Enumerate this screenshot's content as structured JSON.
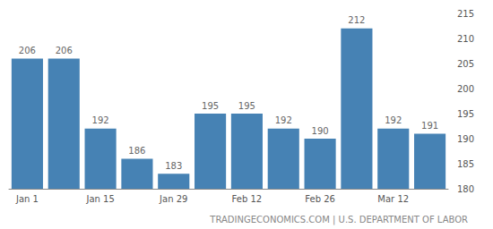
{
  "chart_data": {
    "type": "bar",
    "categories": [
      "Jan 1",
      null,
      "Jan 15",
      null,
      "Jan 29",
      null,
      "Feb 12",
      null,
      "Feb 26",
      null,
      "Mar 12",
      null
    ],
    "values": [
      206,
      206,
      192,
      186,
      183,
      195,
      195,
      192,
      190,
      212,
      192,
      191
    ],
    "color": "#4682b4",
    "ylim": [
      180,
      215
    ],
    "yticks": [
      180,
      185,
      190,
      195,
      200,
      205,
      210,
      215
    ],
    "grid": false,
    "data_labels": true,
    "annotations": [
      "TRADINGECONOMICS.COM | U.S. DEPARTMENT OF LABOR"
    ]
  }
}
